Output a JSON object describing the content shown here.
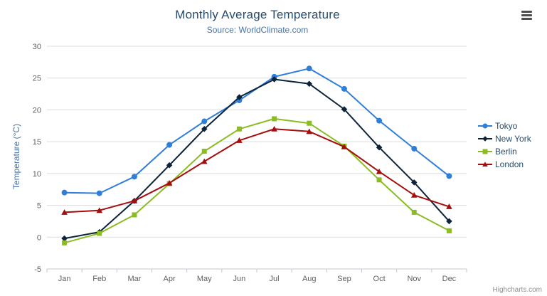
{
  "chart": {
    "title": "Monthly Average Temperature",
    "subtitle": "Source: WorldClimate.com",
    "y_axis_title": "Temperature (°C)",
    "credits": "Highcharts.com",
    "export_icon": "hamburger-menu-icon"
  },
  "chart_data": {
    "type": "line",
    "title": "Monthly Average Temperature",
    "subtitle": "Source: WorldClimate.com",
    "xlabel": "",
    "ylabel": "Temperature (°C)",
    "categories": [
      "Jan",
      "Feb",
      "Mar",
      "Apr",
      "May",
      "Jun",
      "Jul",
      "Aug",
      "Sep",
      "Oct",
      "Nov",
      "Dec"
    ],
    "series": [
      {
        "name": "Tokyo",
        "color": "#2f7ed8",
        "marker": "circle",
        "values": [
          7.0,
          6.9,
          9.5,
          14.5,
          18.2,
          21.5,
          25.2,
          26.5,
          23.3,
          18.3,
          13.9,
          9.6
        ]
      },
      {
        "name": "New York",
        "color": "#0d233a",
        "marker": "diamond",
        "values": [
          -0.2,
          0.8,
          5.7,
          11.3,
          17.0,
          22.0,
          24.8,
          24.1,
          20.1,
          14.1,
          8.6,
          2.5
        ]
      },
      {
        "name": "Berlin",
        "color": "#8bbc21",
        "marker": "square",
        "values": [
          -0.9,
          0.6,
          3.5,
          8.4,
          13.5,
          17.0,
          18.6,
          17.9,
          14.3,
          9.0,
          3.9,
          1.0
        ]
      },
      {
        "name": "London",
        "color": "#a50e0e",
        "marker": "triangle",
        "values": [
          3.9,
          4.2,
          5.7,
          8.5,
          11.9,
          15.2,
          17.0,
          16.6,
          14.2,
          10.3,
          6.6,
          4.8
        ]
      }
    ],
    "ylim": [
      -5,
      30
    ],
    "yticks": [
      -5,
      0,
      5,
      10,
      15,
      20,
      25,
      30
    ],
    "grid": true,
    "legend_position": "right"
  }
}
